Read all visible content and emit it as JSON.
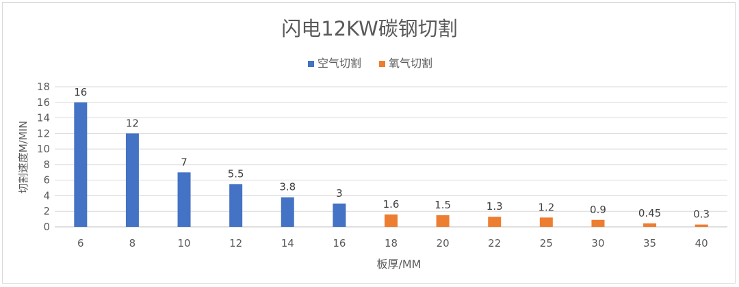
{
  "chart_data": {
    "type": "bar",
    "title": "闪电12KW碳钢切割",
    "xlabel": "板厚/MM",
    "ylabel": "切割速度M/MIN",
    "categories": [
      "6",
      "8",
      "10",
      "12",
      "14",
      "16",
      "18",
      "20",
      "22",
      "25",
      "30",
      "35",
      "40"
    ],
    "series": [
      {
        "name": "空气切割",
        "color": "#4472c4",
        "values": [
          16,
          12,
          7,
          5.5,
          3.8,
          3,
          null,
          null,
          null,
          null,
          null,
          null,
          null
        ],
        "labels": [
          "16",
          "12",
          "7",
          "5.5",
          "3.8",
          "3",
          "",
          "",
          "",
          "",
          "",
          "",
          ""
        ]
      },
      {
        "name": "氧气切割",
        "color": "#ed7d31",
        "values": [
          null,
          null,
          null,
          null,
          null,
          null,
          1.6,
          1.5,
          1.3,
          1.2,
          0.9,
          0.45,
          0.3
        ],
        "labels": [
          "",
          "",
          "",
          "",
          "",
          "",
          "1.6",
          "1.5",
          "1.3",
          "1.2",
          "0.9",
          "0.45",
          "0.3"
        ]
      }
    ],
    "ylim": [
      0,
      18
    ],
    "yticks": [
      "0",
      "2",
      "4",
      "6",
      "8",
      "10",
      "12",
      "14",
      "16",
      "18"
    ],
    "grid": true,
    "legend": "top-center"
  }
}
